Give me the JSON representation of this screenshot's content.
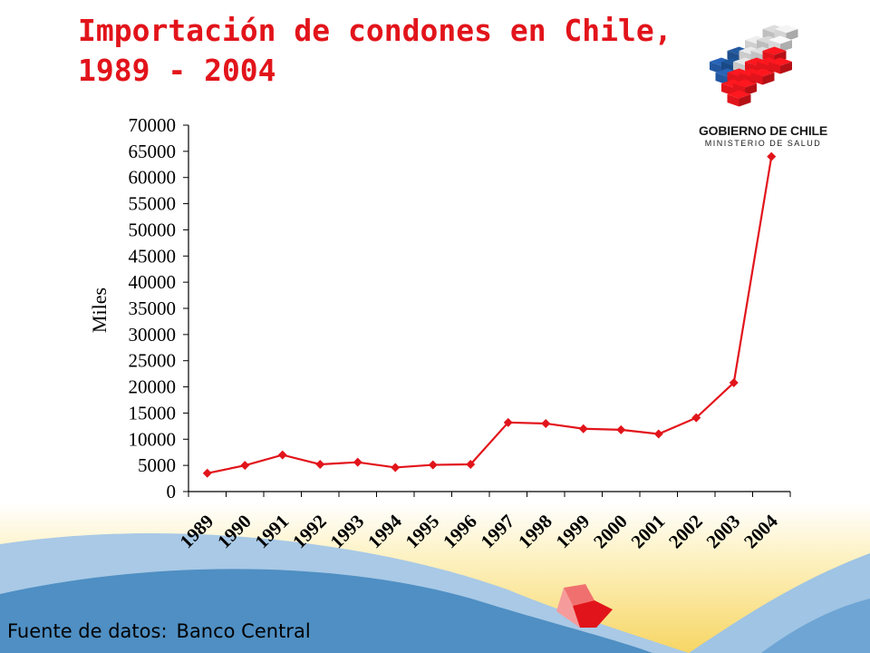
{
  "title": "Importación de condones en Chile, 1989 - 2004",
  "logo": {
    "line1": "GOBIERNO DE CHILE",
    "line2": "MINISTERIO DE SALUD"
  },
  "source": {
    "label": "Fuente de datos:",
    "value": "Banco Central"
  },
  "colors": {
    "title": "#e2141b",
    "series": "#e2141b",
    "background_blue": "#4f8fc3",
    "background_yellow": "#f8d76a"
  },
  "chart_data": {
    "type": "line",
    "title": "",
    "xlabel": "",
    "ylabel": "Miles",
    "ylim": [
      0,
      70000
    ],
    "yticks": [
      0,
      5000,
      10000,
      15000,
      20000,
      25000,
      30000,
      35000,
      40000,
      45000,
      50000,
      55000,
      60000,
      65000,
      70000
    ],
    "categories": [
      "1989",
      "1990",
      "1991",
      "1992",
      "1993",
      "1994",
      "1995",
      "1996",
      "1997",
      "1998",
      "1999",
      "2000",
      "2001",
      "2002",
      "2003",
      "2004"
    ],
    "series": [
      {
        "values": [
          3500,
          5000,
          7000,
          5200,
          5600,
          4600,
          5100,
          5200,
          13200,
          13000,
          12000,
          11800,
          11000,
          14100,
          20800,
          64000
        ]
      }
    ],
    "grid": false,
    "legend": "none"
  }
}
